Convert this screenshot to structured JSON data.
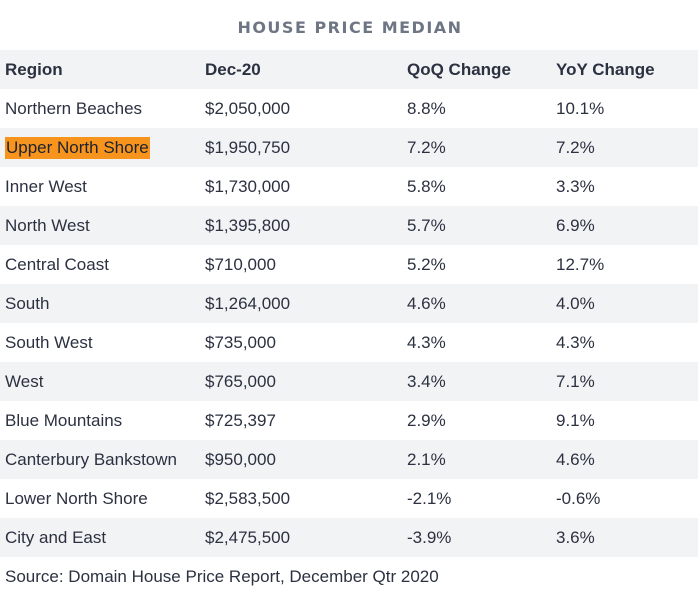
{
  "title": "HOUSE PRICE MEDIAN",
  "table": {
    "headers": [
      "Region",
      "Dec-20",
      "QoQ Change",
      "YoY Change"
    ],
    "rows": [
      {
        "region": "Northern Beaches",
        "price": "$2,050,000",
        "qoq": "8.8%",
        "yoy": "10.1%"
      },
      {
        "region": "Upper North Shore",
        "price": "$1,950,750",
        "qoq": "7.2%",
        "yoy": "7.2%"
      },
      {
        "region": "Inner West",
        "price": "$1,730,000",
        "qoq": "5.8%",
        "yoy": "3.3%"
      },
      {
        "region": "North West",
        "price": "$1,395,800",
        "qoq": "5.7%",
        "yoy": "6.9%"
      },
      {
        "region": "Central Coast",
        "price": "$710,000",
        "qoq": "5.2%",
        "yoy": "12.7%"
      },
      {
        "region": "South",
        "price": "$1,264,000",
        "qoq": "4.6%",
        "yoy": "4.0%"
      },
      {
        "region": "South West",
        "price": "$735,000",
        "qoq": "4.3%",
        "yoy": "4.3%"
      },
      {
        "region": "West",
        "price": "$765,000",
        "qoq": "3.4%",
        "yoy": "7.1%"
      },
      {
        "region": "Blue Mountains",
        "price": "$725,397",
        "qoq": "2.9%",
        "yoy": "9.1%"
      },
      {
        "region": "Canterbury Bankstown",
        "price": "$950,000",
        "qoq": "2.1%",
        "yoy": "4.6%"
      },
      {
        "region": "Lower North Shore",
        "price": "$2,583,500",
        "qoq": "-2.1%",
        "yoy": "-0.6%"
      },
      {
        "region": "City and East",
        "price": "$2,475,500",
        "qoq": "-3.9%",
        "yoy": "3.6%"
      }
    ],
    "highlighted_region": "Upper North Shore",
    "highlight_color": "#f7941d",
    "stripe_color": "#f2f3f5"
  },
  "source": "Source: Domain House Price Report, December Qtr 2020"
}
